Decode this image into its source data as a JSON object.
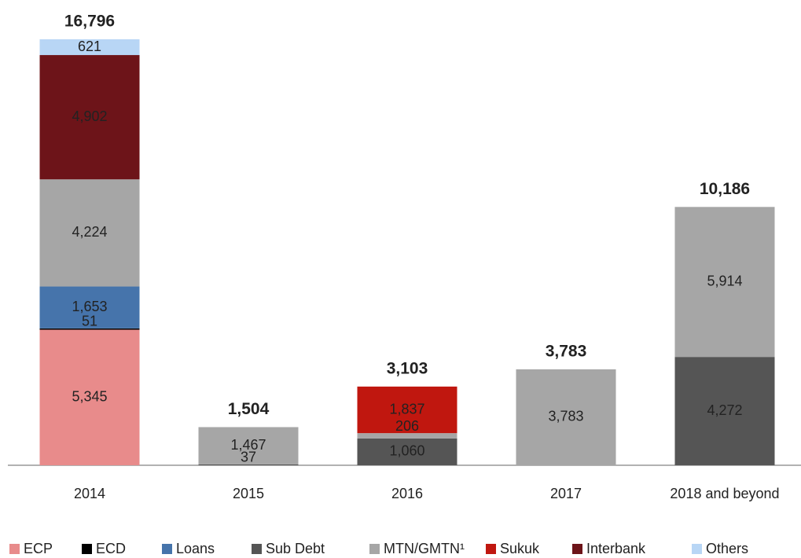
{
  "chart_data": {
    "type": "stacked_bar",
    "categories": [
      "2014",
      "2015",
      "2016",
      "2017",
      "2018 and beyond"
    ],
    "series": [
      {
        "name": "ECP",
        "color": "#e88b8b",
        "values": [
          5345,
          null,
          null,
          null,
          null
        ],
        "value_labels": [
          "5,345",
          null,
          null,
          null,
          null
        ]
      },
      {
        "name": "ECD",
        "color": "#000000",
        "values": [
          51,
          null,
          null,
          null,
          null
        ],
        "value_labels": [
          "51",
          null,
          null,
          null,
          null
        ]
      },
      {
        "name": "Loans",
        "color": "#4674ab",
        "values": [
          1653,
          null,
          null,
          null,
          null
        ],
        "value_labels": [
          "1,653",
          null,
          null,
          null,
          null
        ]
      },
      {
        "name": "Sub Debt",
        "color": "#555555",
        "values": [
          null,
          37,
          1060,
          null,
          4272
        ],
        "value_labels": [
          null,
          "37",
          "1,060",
          null,
          "4,272"
        ]
      },
      {
        "name": "MTN/GMTN¹",
        "color": "#a6a6a6",
        "values": [
          4224,
          1467,
          206,
          3783,
          5914
        ],
        "value_labels": [
          "4,224",
          "1,467",
          "206",
          "3,783",
          "5,914"
        ]
      },
      {
        "name": "Sukuk",
        "color": "#c0170f",
        "values": [
          null,
          null,
          1837,
          null,
          null
        ],
        "value_labels": [
          null,
          null,
          "1,837",
          null,
          null
        ]
      },
      {
        "name": "Interbank",
        "color": "#6d1419",
        "values": [
          4902,
          null,
          null,
          null,
          null
        ],
        "value_labels": [
          "4,902",
          null,
          null,
          null,
          null
        ]
      },
      {
        "name": "Others",
        "color": "#b8d6f5",
        "values": [
          621,
          null,
          null,
          null,
          null
        ],
        "value_labels": [
          "621",
          null,
          null,
          null,
          null
        ]
      }
    ],
    "totals": [
      16796,
      1504,
      3103,
      3783,
      10186
    ],
    "total_labels": [
      "16,796",
      "1,504",
      "3,103",
      "3,783",
      "10,186"
    ]
  }
}
